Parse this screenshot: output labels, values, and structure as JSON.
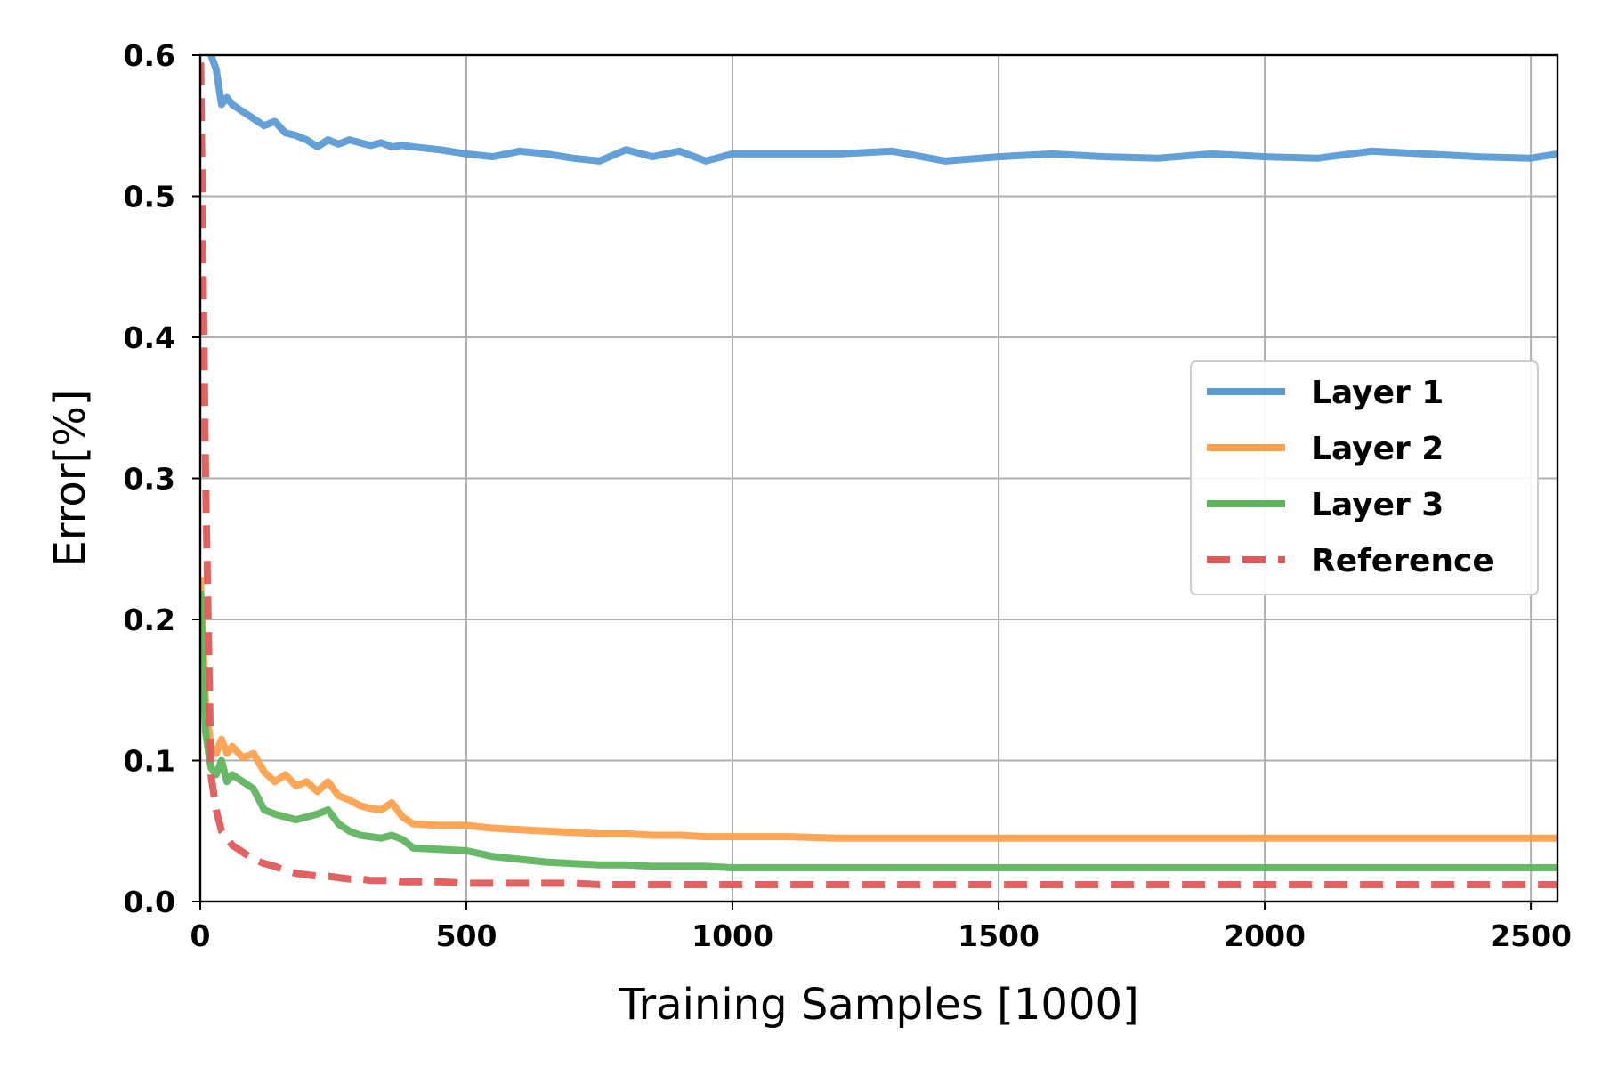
{
  "chart_data": {
    "type": "line",
    "xlabel": "Training Samples [1000]",
    "ylabel": "Error[%]",
    "xlim": [
      0,
      2550
    ],
    "ylim": [
      0,
      0.6
    ],
    "x_ticks": [
      "0",
      "500",
      "1000",
      "1500",
      "2000",
      "2500"
    ],
    "y_ticks": [
      "0.0",
      "0.1",
      "0.2",
      "0.3",
      "0.4",
      "0.5",
      "0.6"
    ],
    "grid": true,
    "legend_position": "center-right",
    "x": [
      0,
      10,
      20,
      30,
      40,
      50,
      60,
      80,
      100,
      120,
      140,
      160,
      180,
      200,
      220,
      240,
      260,
      280,
      300,
      320,
      340,
      360,
      380,
      400,
      450,
      500,
      550,
      600,
      650,
      700,
      750,
      800,
      850,
      900,
      950,
      1000,
      1100,
      1200,
      1300,
      1400,
      1500,
      1600,
      1700,
      1800,
      1900,
      2000,
      2100,
      2200,
      2300,
      2400,
      2500,
      2550
    ],
    "series": [
      {
        "name": "Layer 1",
        "color": "#5a9bd5",
        "dash": false,
        "values": [
          0.62,
          0.61,
          0.6,
          0.59,
          0.565,
          0.57,
          0.565,
          0.56,
          0.555,
          0.55,
          0.553,
          0.545,
          0.543,
          0.54,
          0.535,
          0.54,
          0.537,
          0.54,
          0.538,
          0.536,
          0.538,
          0.535,
          0.536,
          0.535,
          0.533,
          0.53,
          0.528,
          0.532,
          0.53,
          0.527,
          0.525,
          0.533,
          0.528,
          0.532,
          0.525,
          0.53,
          0.53,
          0.53,
          0.532,
          0.525,
          0.528,
          0.53,
          0.528,
          0.527,
          0.53,
          0.528,
          0.527,
          0.532,
          0.53,
          0.528,
          0.527,
          0.53
        ]
      },
      {
        "name": "Layer 2",
        "color": "#ffa04d",
        "dash": false,
        "values": [
          0.23,
          0.14,
          0.11,
          0.105,
          0.115,
          0.105,
          0.11,
          0.102,
          0.105,
          0.092,
          0.085,
          0.09,
          0.082,
          0.085,
          0.078,
          0.085,
          0.075,
          0.072,
          0.068,
          0.066,
          0.065,
          0.07,
          0.06,
          0.055,
          0.054,
          0.054,
          0.052,
          0.051,
          0.05,
          0.049,
          0.048,
          0.048,
          0.047,
          0.047,
          0.046,
          0.046,
          0.046,
          0.045,
          0.045,
          0.045,
          0.045,
          0.045,
          0.045,
          0.045,
          0.045,
          0.045,
          0.045,
          0.045,
          0.045,
          0.045,
          0.045,
          0.045
        ]
      },
      {
        "name": "Layer 3",
        "color": "#5fb55f",
        "dash": false,
        "values": [
          0.22,
          0.12,
          0.095,
          0.09,
          0.1,
          0.085,
          0.09,
          0.085,
          0.08,
          0.065,
          0.062,
          0.06,
          0.058,
          0.06,
          0.062,
          0.065,
          0.055,
          0.05,
          0.047,
          0.046,
          0.045,
          0.047,
          0.044,
          0.038,
          0.037,
          0.036,
          0.032,
          0.03,
          0.028,
          0.027,
          0.026,
          0.026,
          0.025,
          0.025,
          0.025,
          0.024,
          0.024,
          0.024,
          0.024,
          0.024,
          0.024,
          0.024,
          0.024,
          0.024,
          0.024,
          0.024,
          0.024,
          0.024,
          0.024,
          0.024,
          0.024,
          0.024
        ]
      },
      {
        "name": "Reference",
        "color": "#e05a5a",
        "dash": true,
        "values": [
          0.62,
          0.3,
          0.09,
          0.065,
          0.05,
          0.045,
          0.04,
          0.035,
          0.03,
          0.027,
          0.025,
          0.022,
          0.02,
          0.019,
          0.018,
          0.018,
          0.017,
          0.016,
          0.016,
          0.015,
          0.015,
          0.015,
          0.014,
          0.014,
          0.014,
          0.013,
          0.013,
          0.013,
          0.013,
          0.013,
          0.012,
          0.012,
          0.012,
          0.012,
          0.012,
          0.012,
          0.012,
          0.012,
          0.012,
          0.012,
          0.012,
          0.012,
          0.012,
          0.012,
          0.012,
          0.012,
          0.012,
          0.012,
          0.012,
          0.012,
          0.012,
          0.012
        ]
      }
    ]
  }
}
